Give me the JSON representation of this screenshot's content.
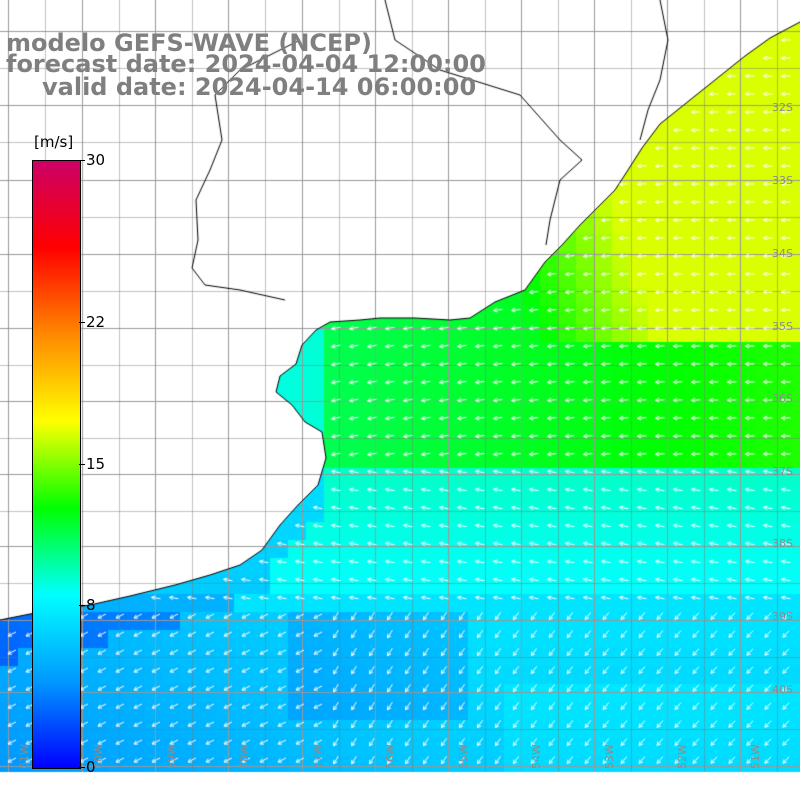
{
  "titles": {
    "line1": "modelo GEFS-WAVE (NCEP)",
    "line2": "forecast date: 2024-04-04 12:00:00",
    "line3": "valid date: 2024-04-14 06:00:00"
  },
  "colorbar": {
    "unit": "[m/s]",
    "range": [
      0,
      30
    ],
    "ticks": [
      30,
      22,
      15,
      8,
      0
    ],
    "colors": [
      "#0000ff",
      "#0099ff",
      "#00ffff",
      "#00ff00",
      "#ffff00",
      "#ff8800",
      "#ff0000",
      "#cc0066"
    ]
  },
  "latitude_labels": [
    "32S",
    "33S",
    "34S",
    "35S",
    "36S",
    "37S",
    "38S",
    "39S",
    "40S"
  ],
  "longitude_labels": [
    "61W",
    "60W",
    "59W",
    "58W",
    "57W",
    "56W",
    "55W",
    "54W",
    "53W",
    "52W",
    "51W"
  ],
  "map": {
    "land_color": "#ffffff",
    "coast_color": "#000000",
    "grid_color": "#999999",
    "arrow_color": "#ffffff"
  }
}
